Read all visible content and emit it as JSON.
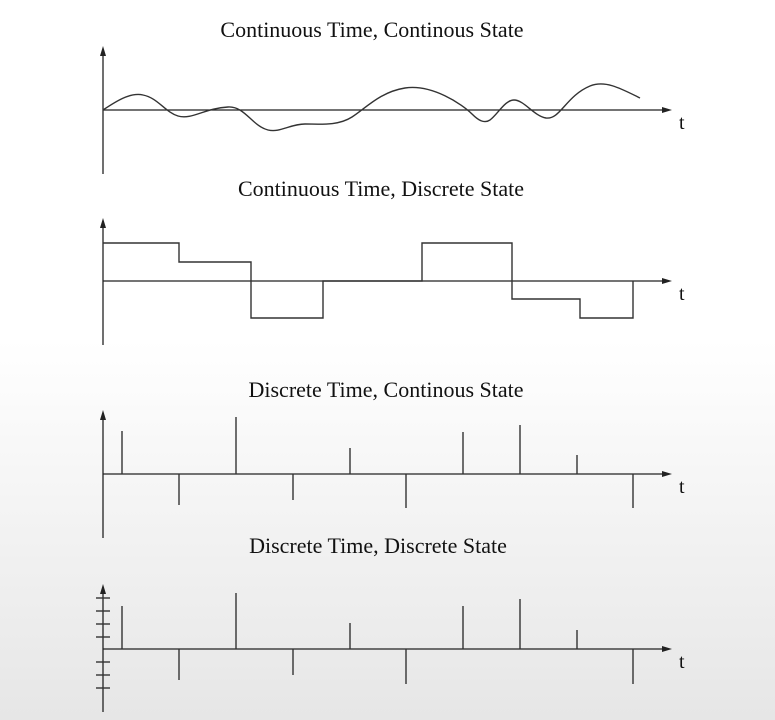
{
  "panels": [
    {
      "id": "ct-cs",
      "title": "Continuous Time, Continous State",
      "axis_label": "t"
    },
    {
      "id": "ct-ds",
      "title": "Continuous Time, Discrete State",
      "axis_label": "t"
    },
    {
      "id": "dt-cs",
      "title": "Discrete Time, Continous State",
      "axis_label": "t"
    },
    {
      "id": "dt-ds",
      "title": "Discrete Time, Discrete State",
      "axis_label": "t"
    }
  ]
}
